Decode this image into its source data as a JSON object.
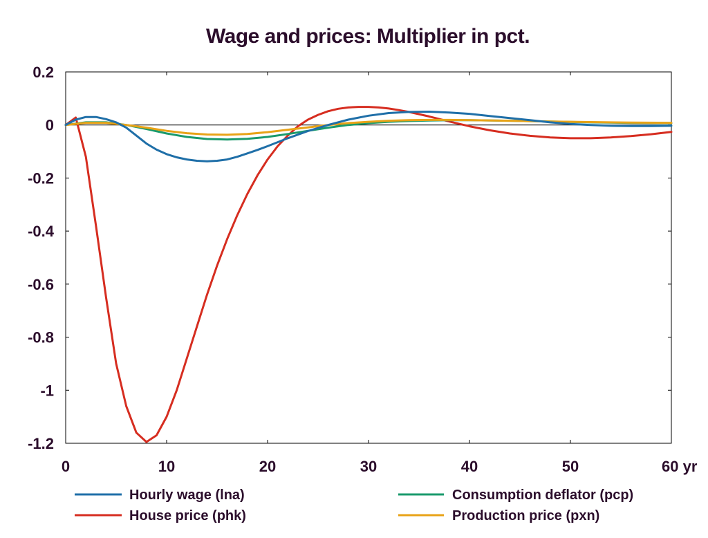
{
  "chart_data": {
    "type": "line",
    "title": "Wage and prices: Multiplier in pct.",
    "xlabel": "",
    "ylabel": "",
    "xlim": [
      0,
      60
    ],
    "ylim": [
      -1.2,
      0.2
    ],
    "x_ticks": [
      "0",
      "10",
      "20",
      "30",
      "40",
      "50",
      "60 yr"
    ],
    "x_tick_values": [
      0,
      10,
      20,
      30,
      40,
      50,
      60
    ],
    "y_ticks": [
      "0.2",
      "0",
      "-0.2",
      "-0.4",
      "-0.6",
      "-0.8",
      "-1",
      "-1.2"
    ],
    "y_tick_values": [
      0.2,
      0,
      -0.2,
      -0.4,
      -0.6,
      -0.8,
      -1,
      -1.2
    ],
    "grid": false,
    "legend_position": "bottom",
    "series": [
      {
        "name": "Hourly wage (lna)",
        "color": "#1f6fa8",
        "x": [
          0,
          1,
          2,
          3,
          4,
          5,
          6,
          7,
          8,
          9,
          10,
          11,
          12,
          13,
          14,
          15,
          16,
          17,
          18,
          19,
          20,
          22,
          24,
          26,
          28,
          30,
          32,
          34,
          36,
          38,
          40,
          42,
          44,
          46,
          48,
          50,
          52,
          54,
          56,
          58,
          60
        ],
        "y": [
          0,
          0.02,
          0.03,
          0.03,
          0.022,
          0.01,
          -0.01,
          -0.04,
          -0.07,
          -0.093,
          -0.11,
          -0.122,
          -0.13,
          -0.135,
          -0.137,
          -0.135,
          -0.13,
          -0.12,
          -0.107,
          -0.094,
          -0.08,
          -0.05,
          -0.023,
          0,
          0.02,
          0.035,
          0.045,
          0.049,
          0.05,
          0.047,
          0.042,
          0.034,
          0.026,
          0.018,
          0.01,
          0.004,
          0,
          -0.003,
          -0.004,
          -0.004,
          -0.003
        ]
      },
      {
        "name": "Consumption deflator (pcp)",
        "color": "#1a9a6c",
        "x": [
          0,
          2,
          4,
          6,
          8,
          10,
          12,
          14,
          16,
          18,
          20,
          22,
          24,
          26,
          28,
          30,
          32,
          34,
          36,
          38,
          40,
          44,
          48,
          52,
          56,
          60
        ],
        "y": [
          0,
          0.01,
          0.01,
          0,
          -0.015,
          -0.032,
          -0.045,
          -0.053,
          -0.055,
          -0.052,
          -0.045,
          -0.034,
          -0.022,
          -0.01,
          0,
          0.007,
          0.012,
          0.015,
          0.017,
          0.018,
          0.018,
          0.016,
          0.013,
          0.01,
          0.008,
          0.007
        ]
      },
      {
        "name": "House price (phk)",
        "color": "#d62d20",
        "x": [
          0,
          1,
          2,
          3,
          4,
          5,
          6,
          7,
          8,
          9,
          10,
          11,
          12,
          13,
          14,
          15,
          16,
          17,
          18,
          19,
          20,
          21,
          22,
          23,
          24,
          25,
          26,
          27,
          28,
          29,
          30,
          31,
          32,
          33,
          34,
          36,
          38,
          40,
          42,
          44,
          46,
          48,
          50,
          52,
          54,
          56,
          58,
          60
        ],
        "y": [
          0,
          0.028,
          -0.12,
          -0.38,
          -0.65,
          -0.9,
          -1.06,
          -1.16,
          -1.195,
          -1.17,
          -1.1,
          -1.0,
          -0.88,
          -0.76,
          -0.64,
          -0.53,
          -0.43,
          -0.34,
          -0.26,
          -0.19,
          -0.13,
          -0.08,
          -0.04,
          -0.005,
          0.02,
          0.038,
          0.052,
          0.061,
          0.066,
          0.068,
          0.068,
          0.066,
          0.062,
          0.056,
          0.049,
          0.032,
          0.013,
          -0.005,
          -0.02,
          -0.032,
          -0.041,
          -0.047,
          -0.05,
          -0.05,
          -0.047,
          -0.042,
          -0.035,
          -0.026
        ]
      },
      {
        "name": "Production price (pxn)",
        "color": "#e8a317",
        "x": [
          0,
          2,
          4,
          6,
          8,
          10,
          12,
          14,
          16,
          18,
          20,
          22,
          24,
          26,
          28,
          30,
          32,
          34,
          36,
          38,
          40,
          44,
          48,
          52,
          56,
          60
        ],
        "y": [
          0,
          0.008,
          0.008,
          0,
          -0.01,
          -0.022,
          -0.031,
          -0.036,
          -0.037,
          -0.034,
          -0.027,
          -0.018,
          -0.009,
          0,
          0.007,
          0.012,
          0.016,
          0.018,
          0.019,
          0.019,
          0.018,
          0.016,
          0.013,
          0.011,
          0.009,
          0.008
        ]
      }
    ]
  }
}
